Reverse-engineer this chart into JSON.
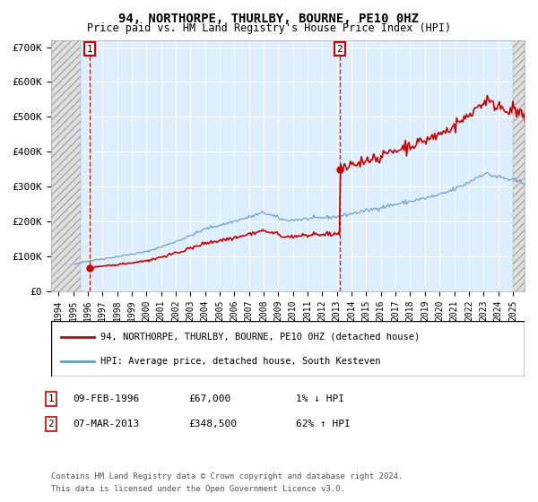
{
  "title": "94, NORTHORPE, THURLBY, BOURNE, PE10 0HZ",
  "subtitle": "Price paid vs. HM Land Registry's House Price Index (HPI)",
  "sale1_price": 67000,
  "sale1_year": 1996.11,
  "sale2_price": 348500,
  "sale2_year": 2013.18,
  "legend_line1": "94, NORTHORPE, THURLBY, BOURNE, PE10 0HZ (detached house)",
  "legend_line2": "HPI: Average price, detached house, South Kesteven",
  "footer1": "Contains HM Land Registry data © Crown copyright and database right 2024.",
  "footer2": "This data is licensed under the Open Government Licence v3.0.",
  "hpi_color": "#6699cc",
  "price_color": "#cc0000",
  "background_plot": "#ddeeff",
  "ylim": [
    0,
    720000
  ],
  "xlim_left": 1993.5,
  "xlim_right": 2025.8,
  "ann1_date": "09-FEB-1996",
  "ann1_price": "£67,000",
  "ann1_hpi": "1% ↓ HPI",
  "ann2_date": "07-MAR-2013",
  "ann2_price": "£348,500",
  "ann2_hpi": "62% ↑ HPI"
}
